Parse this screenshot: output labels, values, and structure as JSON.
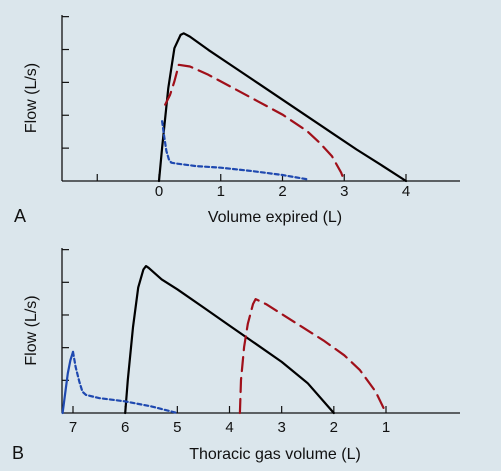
{
  "colors": {
    "background": "#dbe6ec",
    "axis": "#111111",
    "solid": "#000000",
    "dashed_red": "#a0101a",
    "dotted_blue": "#1f49b0"
  },
  "chart_data": [
    {
      "type": "line",
      "panel_label": "A",
      "xlabel": "Volume expired (L)",
      "ylabel": "Flow (L/s)",
      "x_ticks": [
        "0",
        "1",
        "2",
        "3",
        "4"
      ],
      "xlim": [
        -2,
        4.5
      ],
      "y_ticks_count": 5,
      "ylim": [
        0,
        5
      ],
      "series": [
        {
          "style": "solid",
          "x": [
            0,
            0.05,
            0.15,
            0.25,
            0.35,
            0.4,
            0.5,
            0.8,
            1.2,
            1.6,
            2.0,
            2.4,
            2.8,
            3.2,
            3.6,
            4.0
          ],
          "y": [
            0,
            1.0,
            2.8,
            4.0,
            4.4,
            4.45,
            4.35,
            3.95,
            3.45,
            2.95,
            2.45,
            1.95,
            1.45,
            0.95,
            0.48,
            0
          ]
        },
        {
          "style": "dashed",
          "x": [
            0.1,
            0.18,
            0.25,
            0.32,
            0.5,
            0.8,
            1.2,
            1.6,
            2.0,
            2.4,
            2.6,
            2.8,
            2.95,
            3.0
          ],
          "y": [
            2.3,
            2.6,
            3.0,
            3.5,
            3.45,
            3.2,
            2.8,
            2.4,
            2.0,
            1.5,
            1.15,
            0.75,
            0.25,
            0
          ]
        },
        {
          "style": "dotted",
          "x": [
            0.05,
            0.08,
            0.12,
            0.16,
            0.2,
            0.3,
            0.6,
            1.0,
            1.5,
            2.0,
            2.4
          ],
          "y": [
            1.8,
            1.4,
            0.9,
            0.65,
            0.55,
            0.52,
            0.45,
            0.4,
            0.3,
            0.18,
            0.05
          ]
        }
      ]
    },
    {
      "type": "line",
      "panel_label": "B",
      "xlabel": "Thoracic gas volume (L)",
      "ylabel": "Flow (L/s)",
      "x_ticks": [
        "7",
        "6",
        "5",
        "4",
        "3",
        "2",
        "1"
      ],
      "x_tick_values": [
        7,
        6,
        5,
        4,
        3,
        2,
        1
      ],
      "xlim": [
        7.6,
        0.2
      ],
      "y_ticks_count": 5,
      "ylim": [
        0,
        5
      ],
      "series": [
        {
          "style": "solid",
          "x": [
            6.0,
            5.95,
            5.85,
            5.75,
            5.65,
            5.6,
            5.55,
            5.3,
            5.0,
            4.5,
            4.0,
            3.5,
            3.0,
            2.5,
            2.0
          ],
          "y": [
            0,
            1.0,
            2.6,
            3.8,
            4.35,
            4.45,
            4.4,
            4.05,
            3.75,
            3.2,
            2.65,
            2.1,
            1.55,
            0.9,
            0
          ]
        },
        {
          "style": "dashed",
          "x": [
            3.8,
            3.78,
            3.72,
            3.65,
            3.55,
            3.5,
            3.3,
            3.0,
            2.6,
            2.2,
            1.8,
            1.5,
            1.2,
            1.0
          ],
          "y": [
            0,
            1.0,
            2.0,
            2.7,
            3.3,
            3.45,
            3.3,
            3.0,
            2.6,
            2.2,
            1.75,
            1.3,
            0.65,
            0
          ]
        },
        {
          "style": "dotted",
          "x": [
            7.0,
            6.95,
            6.88,
            6.82,
            6.75,
            6.5,
            6.0,
            5.5,
            5.0
          ],
          "y": [
            1.85,
            1.4,
            0.95,
            0.65,
            0.55,
            0.45,
            0.35,
            0.2,
            0
          ]
        },
        {
          "style": "solid-blue",
          "x": [
            7.2,
            7.15,
            7.1,
            7.05,
            7.0
          ],
          "y": [
            0,
            0.6,
            1.2,
            1.6,
            1.85
          ]
        }
      ]
    }
  ]
}
